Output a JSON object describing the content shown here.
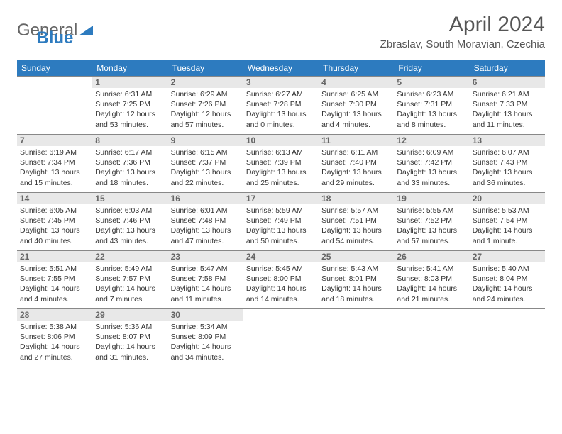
{
  "logo": {
    "text1": "General",
    "text2": "Blue"
  },
  "title": "April 2024",
  "location": "Zbraslav, South Moravian, Czechia",
  "colors": {
    "header_bg": "#2d7bbf",
    "logo_blue": "#2d7bbf",
    "text": "#333333",
    "daynum_bg": "#e8e8e8"
  },
  "dayNames": [
    "Sunday",
    "Monday",
    "Tuesday",
    "Wednesday",
    "Thursday",
    "Friday",
    "Saturday"
  ],
  "weeks": [
    [
      null,
      {
        "n": "1",
        "sr": "6:31 AM",
        "ss": "7:25 PM",
        "dl": "12 hours and 53 minutes."
      },
      {
        "n": "2",
        "sr": "6:29 AM",
        "ss": "7:26 PM",
        "dl": "12 hours and 57 minutes."
      },
      {
        "n": "3",
        "sr": "6:27 AM",
        "ss": "7:28 PM",
        "dl": "13 hours and 0 minutes."
      },
      {
        "n": "4",
        "sr": "6:25 AM",
        "ss": "7:30 PM",
        "dl": "13 hours and 4 minutes."
      },
      {
        "n": "5",
        "sr": "6:23 AM",
        "ss": "7:31 PM",
        "dl": "13 hours and 8 minutes."
      },
      {
        "n": "6",
        "sr": "6:21 AM",
        "ss": "7:33 PM",
        "dl": "13 hours and 11 minutes."
      }
    ],
    [
      {
        "n": "7",
        "sr": "6:19 AM",
        "ss": "7:34 PM",
        "dl": "13 hours and 15 minutes."
      },
      {
        "n": "8",
        "sr": "6:17 AM",
        "ss": "7:36 PM",
        "dl": "13 hours and 18 minutes."
      },
      {
        "n": "9",
        "sr": "6:15 AM",
        "ss": "7:37 PM",
        "dl": "13 hours and 22 minutes."
      },
      {
        "n": "10",
        "sr": "6:13 AM",
        "ss": "7:39 PM",
        "dl": "13 hours and 25 minutes."
      },
      {
        "n": "11",
        "sr": "6:11 AM",
        "ss": "7:40 PM",
        "dl": "13 hours and 29 minutes."
      },
      {
        "n": "12",
        "sr": "6:09 AM",
        "ss": "7:42 PM",
        "dl": "13 hours and 33 minutes."
      },
      {
        "n": "13",
        "sr": "6:07 AM",
        "ss": "7:43 PM",
        "dl": "13 hours and 36 minutes."
      }
    ],
    [
      {
        "n": "14",
        "sr": "6:05 AM",
        "ss": "7:45 PM",
        "dl": "13 hours and 40 minutes."
      },
      {
        "n": "15",
        "sr": "6:03 AM",
        "ss": "7:46 PM",
        "dl": "13 hours and 43 minutes."
      },
      {
        "n": "16",
        "sr": "6:01 AM",
        "ss": "7:48 PM",
        "dl": "13 hours and 47 minutes."
      },
      {
        "n": "17",
        "sr": "5:59 AM",
        "ss": "7:49 PM",
        "dl": "13 hours and 50 minutes."
      },
      {
        "n": "18",
        "sr": "5:57 AM",
        "ss": "7:51 PM",
        "dl": "13 hours and 54 minutes."
      },
      {
        "n": "19",
        "sr": "5:55 AM",
        "ss": "7:52 PM",
        "dl": "13 hours and 57 minutes."
      },
      {
        "n": "20",
        "sr": "5:53 AM",
        "ss": "7:54 PM",
        "dl": "14 hours and 1 minute."
      }
    ],
    [
      {
        "n": "21",
        "sr": "5:51 AM",
        "ss": "7:55 PM",
        "dl": "14 hours and 4 minutes."
      },
      {
        "n": "22",
        "sr": "5:49 AM",
        "ss": "7:57 PM",
        "dl": "14 hours and 7 minutes."
      },
      {
        "n": "23",
        "sr": "5:47 AM",
        "ss": "7:58 PM",
        "dl": "14 hours and 11 minutes."
      },
      {
        "n": "24",
        "sr": "5:45 AM",
        "ss": "8:00 PM",
        "dl": "14 hours and 14 minutes."
      },
      {
        "n": "25",
        "sr": "5:43 AM",
        "ss": "8:01 PM",
        "dl": "14 hours and 18 minutes."
      },
      {
        "n": "26",
        "sr": "5:41 AM",
        "ss": "8:03 PM",
        "dl": "14 hours and 21 minutes."
      },
      {
        "n": "27",
        "sr": "5:40 AM",
        "ss": "8:04 PM",
        "dl": "14 hours and 24 minutes."
      }
    ],
    [
      {
        "n": "28",
        "sr": "5:38 AM",
        "ss": "8:06 PM",
        "dl": "14 hours and 27 minutes."
      },
      {
        "n": "29",
        "sr": "5:36 AM",
        "ss": "8:07 PM",
        "dl": "14 hours and 31 minutes."
      },
      {
        "n": "30",
        "sr": "5:34 AM",
        "ss": "8:09 PM",
        "dl": "14 hours and 34 minutes."
      },
      null,
      null,
      null,
      null
    ]
  ],
  "labels": {
    "sunrise": "Sunrise:",
    "sunset": "Sunset:",
    "daylight": "Daylight:"
  }
}
